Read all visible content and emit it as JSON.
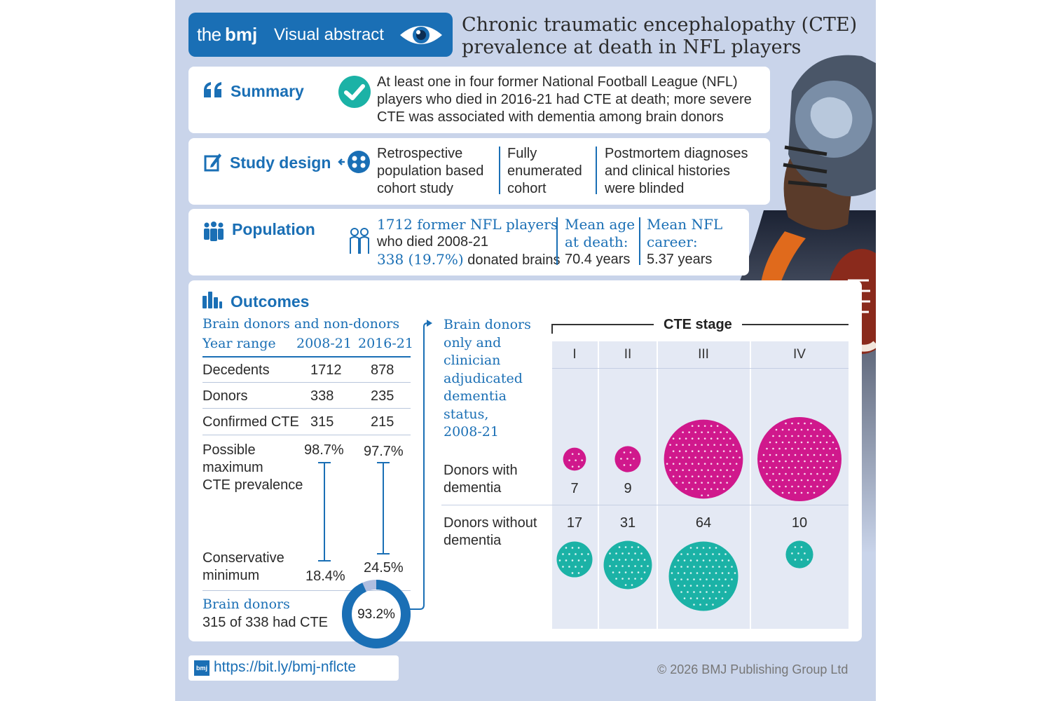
{
  "header": {
    "brand_the": "the",
    "brand_bmj": "bmj",
    "label": "Visual abstract",
    "title_line1": "Chronic traumatic encephalopathy (CTE)",
    "title_line2": "prevalence at death in NFL players"
  },
  "summary": {
    "label": "Summary",
    "line1": "At least one in four former National Football League (NFL)",
    "line2": "players who died in 2016-21 had CTE at death; more severe",
    "line3": "CTE was associated with dementia among brain donors"
  },
  "study_design": {
    "label": "Study design",
    "col1": [
      "Retrospective",
      "population based",
      "cohort study"
    ],
    "col2": [
      "Fully",
      "enumerated",
      "cohort"
    ],
    "col3": [
      "Postmortem diagnoses",
      "and clinical histories",
      "were blinded"
    ]
  },
  "population": {
    "label": "Population",
    "line1": "1712 former NFL players",
    "line2": "who died 2008-21",
    "line3_blue": "338 (19.7%)",
    "line3_rest": " donated brains",
    "age_label": [
      "Mean age",
      "at death:"
    ],
    "age_value": "70.4 years",
    "career_label": [
      "Mean NFL",
      "career:"
    ],
    "career_value": "5.37 years"
  },
  "outcomes": {
    "label": "Outcomes",
    "table_title": "Brain donors and non-donors",
    "year_range_label": "Year range",
    "col_headers": [
      "2008-21",
      "2016-21"
    ],
    "rows": [
      {
        "label": "Decedents",
        "v1": "1712",
        "v2": "878"
      },
      {
        "label": "Donors",
        "v1": "338",
        "v2": "235"
      },
      {
        "label": "Confirmed CTE",
        "v1": "315",
        "v2": "215"
      }
    ],
    "possible_max_label": [
      "Possible",
      "maximum",
      "CTE prevalence"
    ],
    "possible_max_values": [
      "98.7%",
      "97.7%"
    ],
    "conservative_min_label": [
      "Conservative",
      "minimum"
    ],
    "conservative_min_values": [
      "18.4%",
      "24.5%"
    ],
    "donors_title": "Brain donors",
    "donors_text": "315 of 338 had CTE",
    "donors_percent": "93.2%",
    "donors_fraction": 0.932,
    "clinician_text": [
      "Brain donors",
      "only and",
      "clinician",
      "adjudicated",
      "dementia",
      "status,",
      "2008-21"
    ],
    "cte_stage_label": "CTE stage",
    "stages": [
      "I",
      "II",
      "III",
      "IV"
    ],
    "with_dementia_label": [
      "Donors with",
      "dementia"
    ],
    "without_dementia_label": [
      "Donors without",
      "dementia"
    ],
    "with_dementia_counts": [
      "7",
      "9",
      "83",
      "94"
    ],
    "without_dementia_counts": [
      "17",
      "31",
      "64",
      "10"
    ],
    "color_with": "#d0188c",
    "color_without": "#1bb2a6"
  },
  "footer": {
    "url": "https://bit.ly/bmj-nflcte",
    "url_icon": "bmj",
    "copyright": "© 2026 BMJ Publishing Group Ltd"
  },
  "icons": [
    "eye-icon",
    "quote-icon",
    "check-icon",
    "pencil-icon",
    "people-group-icon",
    "population-icon",
    "person-outline-icon",
    "bar-chart-icon",
    "arrow-icon",
    "football-player-photo"
  ],
  "colors": {
    "accent": "#1a6fb5",
    "background": "#c9d4ea"
  }
}
